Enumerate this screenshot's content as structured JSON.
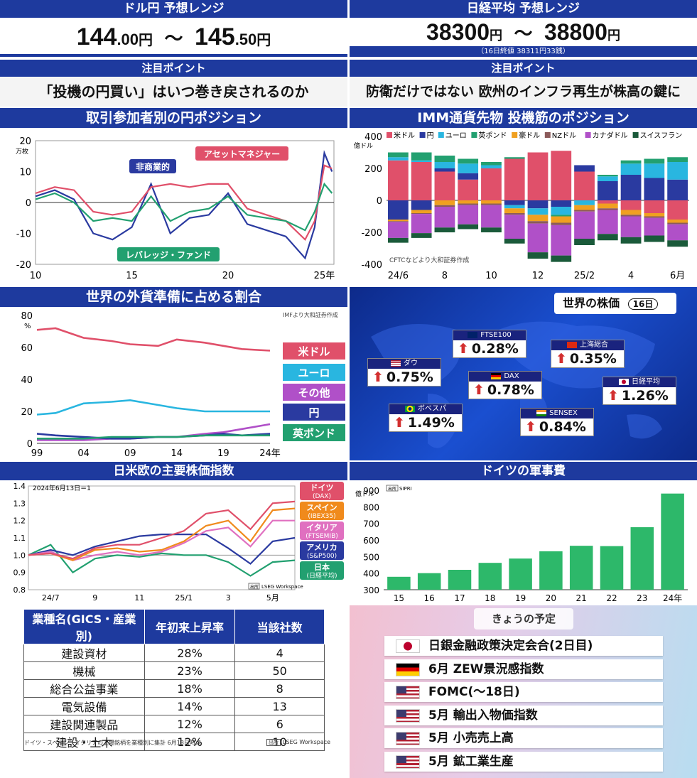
{
  "usdjpy": {
    "title": "ドル円 予想レンジ",
    "low_int": "144",
    "low_dec": ".00",
    "high_int": "145",
    "high_dec": ".50",
    "unit": "円",
    "tilde": "～"
  },
  "nikkei": {
    "title": "日経平均 予想レンジ",
    "low": "38300",
    "high": "38800",
    "unit": "円",
    "tilde": "～",
    "note": "（16日終値 38311円33銭）"
  },
  "focus_left": {
    "header": "注目ポイント",
    "text": "「投機の円買い」はいつ巻き戻されるのか"
  },
  "focus_right": {
    "header": "注目ポイント",
    "text": "防衛だけではない 欧州のインフラ再生が株高の鍵に"
  },
  "colors": {
    "navy": "#1e3a9e",
    "red": "#e0506a",
    "blue": "#2a3aa0",
    "green": "#22a070"
  },
  "chart1": {
    "title": "取引参加者別の円ポジション",
    "unit": "万枚",
    "yticks": [
      "20",
      "10",
      "0",
      "-10",
      "-20"
    ],
    "xticks": [
      "10",
      "15",
      "20",
      "25年"
    ],
    "labels": {
      "noncommercial": "非商業的",
      "asset": "アセットマネジャー",
      "leveraged": "レバレッジ・ファンド"
    },
    "chart_data": {
      "type": "line",
      "x_range": [
        2010,
        2025.5
      ],
      "ylim": [
        -20,
        20
      ],
      "series": [
        {
          "name": "非商業的",
          "color": "#2a3aa0",
          "x": [
            2010,
            2011,
            2012,
            2013,
            2014,
            2015,
            2016,
            2017,
            2018,
            2019,
            2020,
            2021,
            2022,
            2023,
            2024,
            2024.5,
            2025,
            2025.4
          ],
          "values": [
            2,
            4,
            1,
            -10,
            -12,
            -8,
            6,
            -10,
            -5,
            -4,
            3,
            -7,
            -9,
            -11,
            -18,
            -8,
            16,
            10
          ]
        },
        {
          "name": "アセットマネジャー",
          "color": "#e0506a",
          "x": [
            2010,
            2011,
            2012,
            2013,
            2014,
            2015,
            2016,
            2017,
            2018,
            2019,
            2020,
            2021,
            2022,
            2023,
            2024,
            2024.5,
            2025,
            2025.4
          ],
          "values": [
            3,
            5,
            4,
            -3,
            -4,
            -3,
            5,
            6,
            5,
            6,
            6,
            -2,
            -4,
            -6,
            -12,
            -6,
            12,
            11
          ]
        },
        {
          "name": "レバレッジ・ファンド",
          "color": "#22a070",
          "x": [
            2010,
            2011,
            2012,
            2013,
            2014,
            2015,
            2016,
            2017,
            2018,
            2019,
            2020,
            2021,
            2022,
            2023,
            2024,
            2024.5,
            2025,
            2025.4
          ],
          "values": [
            1,
            3,
            0,
            -6,
            -5,
            -6,
            2,
            -6,
            -3,
            -2,
            2,
            -4,
            -5,
            -6,
            -9,
            -3,
            6,
            3
          ]
        }
      ]
    }
  },
  "chart2": {
    "title": "IMM通貨先物 投機筋のポジション",
    "unit": "億ドル",
    "source": "CFTCなどより大和証券作成",
    "yticks": [
      "400",
      "200",
      "0",
      "-200",
      "-400"
    ],
    "xticks": [
      "24/6",
      "8",
      "10",
      "12",
      "25/2",
      "4",
      "6月"
    ],
    "chart_data": {
      "type": "bar",
      "stacked": true,
      "ylim": [
        -400,
        400
      ],
      "categories": [
        "24/6",
        "24/7",
        "24/8",
        "24/9",
        "24/10",
        "24/11",
        "24/12",
        "25/1",
        "25/2",
        "25/3",
        "25/4",
        "25/5",
        "25/6"
      ],
      "series": [
        {
          "name": "米ドル",
          "color": "#e0506a",
          "values": [
            250,
            240,
            180,
            130,
            200,
            260,
            300,
            310,
            180,
            -20,
            -60,
            -80,
            -120
          ]
        },
        {
          "name": "円",
          "color": "#2a3aa0",
          "values": [
            -120,
            -60,
            20,
            40,
            0,
            -30,
            -50,
            -40,
            40,
            120,
            160,
            140,
            130
          ]
        },
        {
          "name": "ユーロ",
          "color": "#29b6e0",
          "values": [
            20,
            10,
            40,
            60,
            20,
            -20,
            -40,
            -50,
            -30,
            30,
            70,
            90,
            110
          ]
        },
        {
          "name": "英ポンド",
          "color": "#22a070",
          "values": [
            30,
            50,
            40,
            30,
            20,
            10,
            0,
            -10,
            0,
            10,
            20,
            30,
            30
          ]
        },
        {
          "name": "豪ドル",
          "color": "#f0a020",
          "values": [
            -10,
            -20,
            -30,
            -20,
            -20,
            -30,
            -40,
            -40,
            -30,
            -30,
            -30,
            -20,
            -20
          ]
        },
        {
          "name": "NZドル",
          "color": "#8b5a5a",
          "values": [
            -5,
            -5,
            -10,
            -10,
            -10,
            -10,
            -15,
            -15,
            -10,
            -10,
            -10,
            -10,
            -10
          ]
        },
        {
          "name": "カナダドル",
          "color": "#b050c8",
          "values": [
            -100,
            -120,
            -130,
            -120,
            -140,
            -150,
            -180,
            -190,
            -170,
            -150,
            -130,
            -110,
            -100
          ]
        },
        {
          "name": "スイスフラン",
          "color": "#1a5a3a",
          "values": [
            -30,
            -30,
            -30,
            -30,
            -30,
            -30,
            -40,
            -40,
            -40,
            -40,
            -40,
            -40,
            -40
          ]
        }
      ]
    }
  },
  "chart3": {
    "title": "世界の外貨準備に占める割合",
    "unit": "%",
    "source": "IMFより大和証券作成",
    "yticks": [
      "80",
      "60",
      "40",
      "20",
      "0"
    ],
    "xticks": [
      "99",
      "04",
      "09",
      "14",
      "19",
      "24年"
    ],
    "labels": {
      "usd": "米ドル",
      "eur": "ユーロ",
      "other": "その他",
      "jpy": "円",
      "gbp": "英ポンド"
    },
    "chart_data": {
      "type": "line",
      "x_range": [
        1999,
        2024
      ],
      "ylim": [
        0,
        80
      ],
      "series": [
        {
          "name": "米ドル",
          "color": "#e0506a",
          "x": [
            1999,
            2001,
            2004,
            2007,
            2009,
            2012,
            2014,
            2017,
            2019,
            2021,
            2024
          ],
          "values": [
            71,
            72,
            66,
            64,
            62,
            61,
            65,
            63,
            61,
            59,
            58
          ]
        },
        {
          "name": "ユーロ",
          "color": "#29b6e0",
          "x": [
            1999,
            2001,
            2004,
            2007,
            2009,
            2012,
            2014,
            2017,
            2019,
            2021,
            2024
          ],
          "values": [
            18,
            19,
            25,
            26,
            27,
            24,
            22,
            20,
            20,
            20,
            20
          ]
        },
        {
          "name": "その他",
          "color": "#b050c8",
          "x": [
            1999,
            2001,
            2004,
            2007,
            2009,
            2012,
            2014,
            2017,
            2019,
            2021,
            2024
          ],
          "values": [
            2,
            2,
            2,
            3,
            3,
            4,
            4,
            6,
            7,
            9,
            12
          ]
        },
        {
          "name": "円",
          "color": "#2a3aa0",
          "x": [
            1999,
            2001,
            2004,
            2007,
            2009,
            2012,
            2014,
            2017,
            2019,
            2021,
            2024
          ],
          "values": [
            6,
            5,
            4,
            3,
            3,
            4,
            4,
            5,
            6,
            5,
            6
          ]
        },
        {
          "name": "英ポンド",
          "color": "#22a070",
          "x": [
            1999,
            2001,
            2004,
            2007,
            2009,
            2012,
            2014,
            2017,
            2019,
            2021,
            2024
          ],
          "values": [
            3,
            3,
            3,
            4,
            4,
            4,
            4,
            5,
            5,
            5,
            5
          ]
        }
      ]
    }
  },
  "world": {
    "title": "世界の株価",
    "date": "16日",
    "stocks": [
      {
        "name": "ダウ",
        "value": "0.75%",
        "flag": "us"
      },
      {
        "name": "FTSE100",
        "value": "0.28%",
        "flag": "uk"
      },
      {
        "name": "上海総合",
        "value": "0.35%",
        "flag": "cn"
      },
      {
        "name": "DAX",
        "value": "0.78%",
        "flag": "de"
      },
      {
        "name": "日経平均",
        "value": "1.26%",
        "flag": "jp"
      },
      {
        "name": "ボベスパ",
        "value": "1.49%",
        "flag": "br"
      },
      {
        "name": "SENSEX",
        "value": "0.84%",
        "flag": "in"
      }
    ]
  },
  "chart4": {
    "title": "日米欧の主要株価指数",
    "note": "2024年6月13日＝1",
    "source": "LSEG Workspace",
    "source_tag": "出所",
    "yticks": [
      "1.4",
      "1.3",
      "1.2",
      "1.1",
      "1.0",
      "0.9",
      "0.8"
    ],
    "xticks": [
      "24/7",
      "9",
      "11",
      "25/1",
      "3",
      "5月"
    ],
    "labels": [
      {
        "a": "ドイツ",
        "b": "(DAX)",
        "color": "#e0506a"
      },
      {
        "a": "スペイン",
        "b": "(IBEX35)",
        "color": "#f08a1c"
      },
      {
        "a": "イタリア",
        "b": "(FTSEMIB)",
        "color": "#e070c0"
      },
      {
        "a": "アメリカ",
        "b": "(S&P500)",
        "color": "#2a3aa0"
      },
      {
        "a": "日本",
        "b": "(日経平均)",
        "color": "#22a070"
      }
    ],
    "chart_data": {
      "type": "line",
      "ylim": [
        0.8,
        1.4
      ],
      "x": [
        "24/6",
        "24/7",
        "24/8",
        "24/9",
        "24/10",
        "24/11",
        "24/12",
        "25/1",
        "25/2",
        "25/3",
        "25/4",
        "25/5",
        "25/6"
      ],
      "series": [
        {
          "name": "ドイツ(DAX)",
          "color": "#e0506a",
          "values": [
            1.0,
            1.01,
            0.98,
            1.04,
            1.06,
            1.06,
            1.1,
            1.14,
            1.24,
            1.26,
            1.15,
            1.3,
            1.31
          ]
        },
        {
          "name": "スペイン(IBEX35)",
          "color": "#f08a1c",
          "values": [
            1.0,
            1.01,
            0.97,
            1.03,
            1.04,
            1.02,
            1.03,
            1.08,
            1.17,
            1.2,
            1.08,
            1.26,
            1.27
          ]
        },
        {
          "name": "イタリア(FTSEMIB)",
          "color": "#e070c0",
          "values": [
            1.0,
            1.02,
            0.97,
            1.0,
            1.02,
            1.0,
            1.02,
            1.07,
            1.14,
            1.16,
            1.05,
            1.2,
            1.2
          ]
        },
        {
          "name": "アメリカ(S&P500)",
          "color": "#2a3aa0",
          "values": [
            1.0,
            1.03,
            1.0,
            1.05,
            1.08,
            1.11,
            1.12,
            1.12,
            1.12,
            1.04,
            0.95,
            1.08,
            1.1
          ]
        },
        {
          "name": "日本(日経平均)",
          "color": "#22a070",
          "values": [
            1.0,
            1.06,
            0.9,
            0.98,
            1.0,
            0.99,
            1.01,
            1.0,
            1.0,
            0.96,
            0.88,
            0.96,
            0.97
          ]
        }
      ]
    }
  },
  "chart5": {
    "title": "ドイツの軍事費",
    "unit": "億ドル",
    "source": "SIPRI",
    "source_tag": "出所",
    "yticks": [
      "900",
      "800",
      "700",
      "600",
      "500",
      "400",
      "300"
    ],
    "chart_data": {
      "type": "bar",
      "categories": [
        "15",
        "16",
        "17",
        "18",
        "19",
        "20",
        "21",
        "22",
        "23",
        "24年"
      ],
      "values": [
        378,
        400,
        420,
        462,
        488,
        532,
        565,
        563,
        677,
        880
      ],
      "ylim": [
        300,
        900
      ],
      "color": "#2db86a"
    }
  },
  "industry": {
    "headers": [
      "業種名(GICS・産業別)",
      "年初来上昇率",
      "当該社数"
    ],
    "rows": [
      [
        "建設資材",
        "28%",
        "4"
      ],
      [
        "機械",
        "23%",
        "50"
      ],
      [
        "総合公益事業",
        "18%",
        "8"
      ],
      [
        "電気設備",
        "14%",
        "13"
      ],
      [
        "建設関連製品",
        "12%",
        "6"
      ],
      [
        "建設・土木",
        "12%",
        "10"
      ]
    ],
    "note": "ドイツ・スペイン・イタリアの上場銘柄を業種別に集計 6月13日時点",
    "source_tag": "出所",
    "source": "LSEG Workspace"
  },
  "schedule": {
    "title": "きょうの予定",
    "items": [
      {
        "flag": "jp",
        "text": "日銀金融政策決定会合(2日目)"
      },
      {
        "flag": "de",
        "text": "6月 ZEW景況感指数"
      },
      {
        "flag": "us",
        "text": "FOMC(～18日)"
      },
      {
        "flag": "us",
        "text": "5月 輸出入物価指数"
      },
      {
        "flag": "us",
        "text": "5月 小売売上高"
      },
      {
        "flag": "us",
        "text": "5月 鉱工業生産"
      }
    ]
  }
}
